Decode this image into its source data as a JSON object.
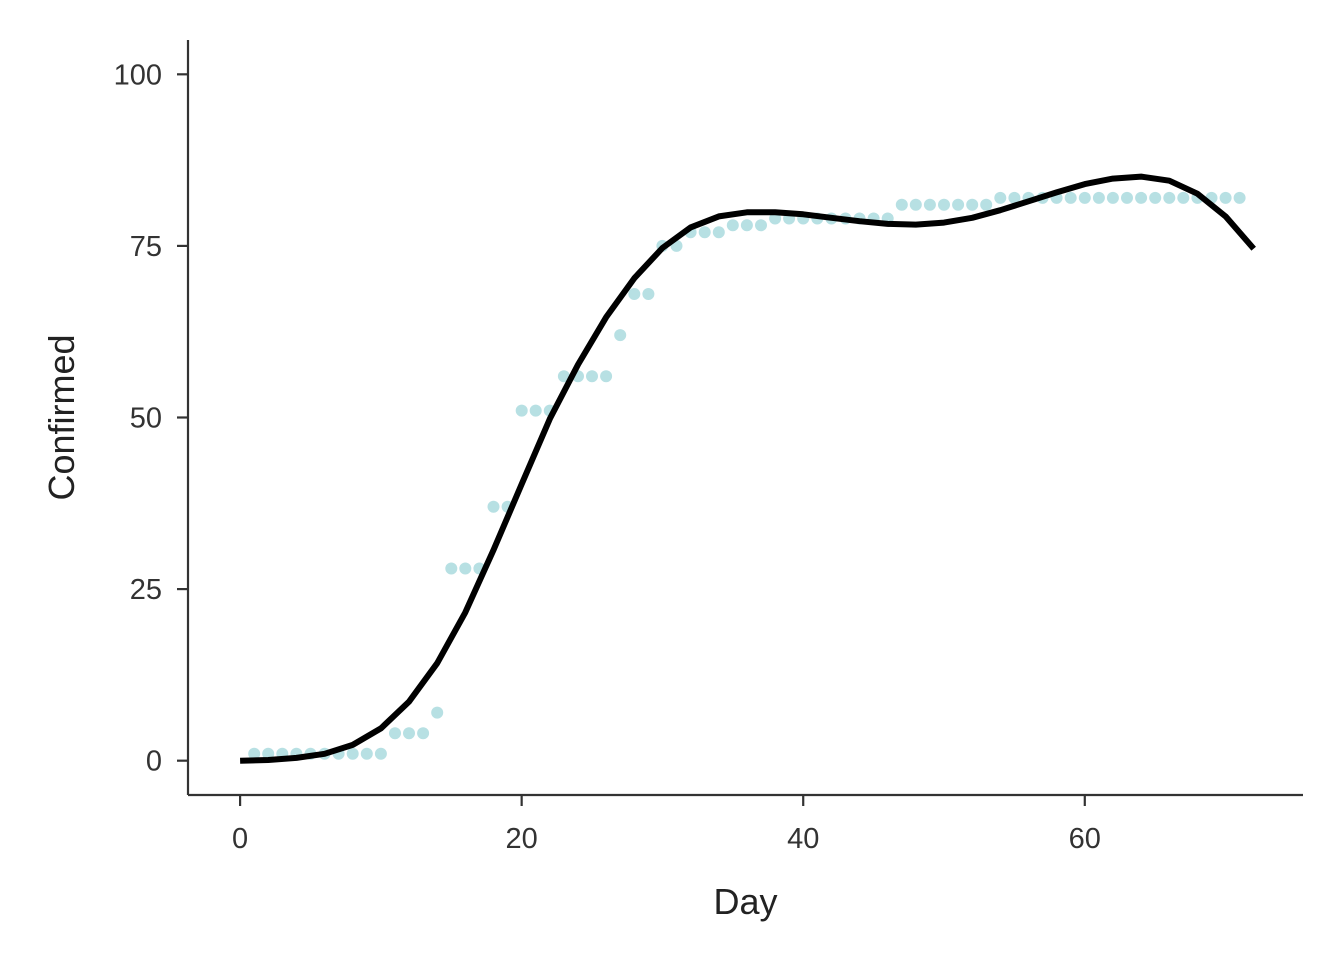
{
  "chart_data": {
    "type": "scatter",
    "title": "",
    "xlabel": "Day",
    "ylabel": "Confirmed",
    "xlim": [
      -3.7,
      75.5
    ],
    "ylim": [
      -5,
      105
    ],
    "x_ticks": [
      "0",
      "20",
      "40",
      "60"
    ],
    "y_ticks": [
      "0",
      "25",
      "50",
      "75",
      "100"
    ],
    "grid": false,
    "legend": "none",
    "colors": {
      "points": "#b7e0e3",
      "line": "#000000",
      "axis": "#333333"
    },
    "series": [
      {
        "kind": "points",
        "x": [
          1,
          2,
          3,
          4,
          5,
          6,
          7,
          8,
          9,
          10,
          11,
          12,
          13,
          14,
          15,
          16,
          17,
          18,
          19,
          20,
          21,
          22,
          23,
          24,
          25,
          26,
          27,
          28,
          29,
          30,
          31,
          32,
          33,
          34,
          35,
          36,
          37,
          38,
          39,
          40,
          41,
          42,
          43,
          44,
          45,
          46,
          47,
          48,
          49,
          50,
          51,
          52,
          53,
          54,
          55,
          56,
          57,
          58,
          59,
          60,
          61,
          62,
          63,
          64,
          65,
          66,
          67,
          68,
          69,
          70,
          71
        ],
        "y": [
          1,
          1,
          1,
          1,
          1,
          1,
          1,
          1,
          1,
          1,
          4,
          4,
          4,
          7,
          28,
          28,
          28,
          37,
          37,
          51,
          51,
          51,
          56,
          56,
          56,
          56,
          62,
          68,
          68,
          75,
          75,
          77,
          77,
          77,
          78,
          78,
          78,
          79,
          79,
          79,
          79,
          79,
          79,
          79,
          79,
          79,
          81,
          81,
          81,
          81,
          81,
          81,
          81,
          82,
          82,
          82,
          82,
          82,
          82,
          82,
          82,
          82,
          82,
          82,
          82,
          82,
          82,
          82,
          82,
          82,
          82
        ]
      },
      {
        "kind": "line",
        "x": [
          0,
          2,
          4,
          6,
          8,
          10,
          12,
          14,
          16,
          18,
          20,
          22,
          24,
          26,
          28,
          30,
          32,
          34,
          36,
          38,
          40,
          42,
          44,
          46,
          48,
          50,
          52,
          54,
          56,
          58,
          60,
          62,
          64,
          66,
          68,
          70,
          72
        ],
        "y": [
          0,
          0.1,
          0.4,
          1.0,
          2.3,
          4.7,
          8.6,
          14.2,
          21.6,
          30.7,
          40.3,
          49.8,
          57.7,
          64.6,
          70.3,
          74.7,
          77.7,
          79.3,
          79.9,
          79.9,
          79.6,
          79.1,
          78.6,
          78.2,
          78.1,
          78.4,
          79.1,
          80.2,
          81.5,
          82.8,
          84.0,
          84.8,
          85.1,
          84.5,
          82.6,
          79.3,
          74.6
        ]
      }
    ]
  }
}
